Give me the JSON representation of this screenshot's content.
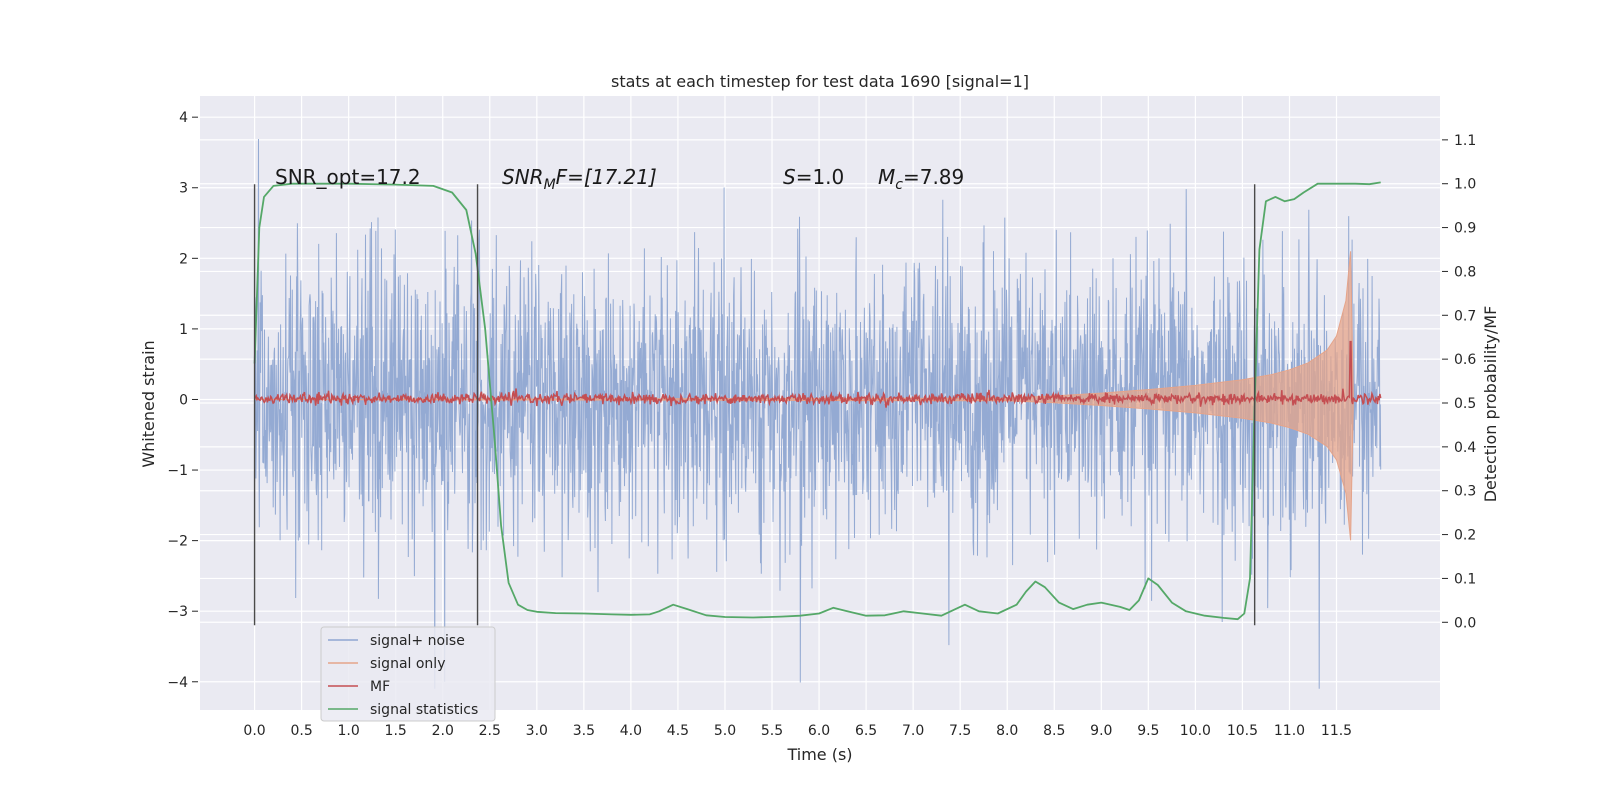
{
  "chart_data": {
    "type": "line",
    "title": "stats at each timestep for test data 1690 [signal=1]",
    "xlabel": "Time (s)",
    "ylabel": "Whitened strain",
    "ylabel_right": "Detection probability/MF",
    "xlim": [
      -0.58,
      12.6
    ],
    "ylim": [
      -4.4,
      4.3
    ],
    "ylim_right": [
      -0.2,
      1.2
    ],
    "xticks": [
      "0.0",
      "0.5",
      "1.0",
      "1.5",
      "2.0",
      "2.5",
      "3.0",
      "3.5",
      "4.0",
      "4.5",
      "5.0",
      "5.5",
      "6.0",
      "6.5",
      "7.0",
      "7.5",
      "8.0",
      "8.5",
      "9.0",
      "9.5",
      "10.0",
      "10.5",
      "11.0",
      "11.5"
    ],
    "yticks_left": [
      "−4",
      "−3",
      "−2",
      "−1",
      "0",
      "1",
      "2",
      "3",
      "4"
    ],
    "yticks_right": [
      "0.0",
      "0.1",
      "0.2",
      "0.3",
      "0.4",
      "0.5",
      "0.6",
      "0.7",
      "0.8",
      "0.9",
      "1.0",
      "1.1"
    ],
    "grid": true,
    "legend_position": "lower-left",
    "annotations": {
      "snr_opt": "SNR_opt=17.2",
      "snr_mf_main": "SNR",
      "snr_mf_sub": "M",
      "snr_mf_rest": "F=[17.21]",
      "s_main": "S",
      "s_rest": "=1.0",
      "mc_main": "M",
      "mc_sub": "c",
      "mc_rest": "=7.89"
    },
    "vertical_markers_x": [
      0.0,
      2.37,
      10.63
    ],
    "series": [
      {
        "name": "signal+ noise",
        "color": "#8fa6d1",
        "noise_sigma": 0.95,
        "time_range": [
          0.0,
          11.97
        ]
      },
      {
        "name": "signal only",
        "color": "#e5a48a",
        "envelope_x": [
          0.0,
          8.0,
          8.5,
          9.0,
          9.5,
          10.0,
          10.5,
          10.8,
          11.0,
          11.2,
          11.4,
          11.5,
          11.6,
          11.65,
          11.68
        ],
        "envelope_y": [
          0.0,
          0.02,
          0.05,
          0.09,
          0.14,
          0.2,
          0.28,
          0.35,
          0.42,
          0.52,
          0.7,
          0.9,
          1.4,
          2.1,
          0.0
        ]
      },
      {
        "name": "MF",
        "color": "#c44e52",
        "baseline": 0.51,
        "peak_x": 11.65,
        "peak_y": 0.64
      },
      {
        "name": "signal statistics",
        "color": "#55a868",
        "x": [
          0.0,
          0.05,
          0.1,
          0.2,
          0.4,
          1.0,
          1.5,
          1.9,
          2.1,
          2.25,
          2.35,
          2.45,
          2.55,
          2.62,
          2.7,
          2.8,
          2.9,
          3.0,
          3.2,
          3.5,
          3.8,
          4.0,
          4.2,
          4.3,
          4.45,
          4.6,
          4.8,
          5.0,
          5.3,
          5.6,
          5.8,
          6.0,
          6.15,
          6.3,
          6.5,
          6.7,
          6.9,
          7.1,
          7.3,
          7.45,
          7.55,
          7.7,
          7.9,
          8.1,
          8.2,
          8.3,
          8.4,
          8.55,
          8.7,
          8.85,
          9.0,
          9.1,
          9.2,
          9.3,
          9.4,
          9.5,
          9.6,
          9.75,
          9.9,
          10.1,
          10.3,
          10.45,
          10.52,
          10.58,
          10.63,
          10.68,
          10.75,
          10.85,
          10.95,
          11.05,
          11.15,
          11.3,
          11.5,
          11.7,
          11.85,
          11.97
        ],
        "y": [
          0.59,
          0.9,
          0.97,
          0.995,
          1.0,
          1.0,
          0.998,
          0.995,
          0.98,
          0.94,
          0.84,
          0.67,
          0.42,
          0.22,
          0.09,
          0.04,
          0.028,
          0.024,
          0.021,
          0.02,
          0.018,
          0.017,
          0.018,
          0.025,
          0.04,
          0.03,
          0.016,
          0.012,
          0.011,
          0.013,
          0.015,
          0.02,
          0.033,
          0.025,
          0.015,
          0.016,
          0.025,
          0.02,
          0.015,
          0.03,
          0.04,
          0.025,
          0.02,
          0.04,
          0.07,
          0.093,
          0.08,
          0.045,
          0.03,
          0.04,
          0.045,
          0.04,
          0.035,
          0.028,
          0.05,
          0.1,
          0.085,
          0.045,
          0.025,
          0.015,
          0.01,
          0.007,
          0.02,
          0.1,
          0.5,
          0.85,
          0.96,
          0.97,
          0.96,
          0.965,
          0.98,
          1.0,
          1.0,
          1.0,
          0.999,
          1.003
        ]
      }
    ]
  }
}
